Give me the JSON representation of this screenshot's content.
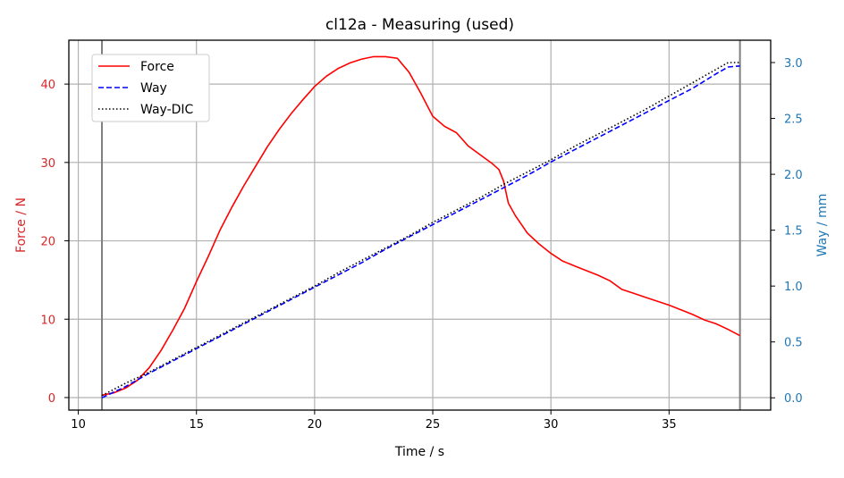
{
  "chart_data": {
    "type": "line",
    "title": "cl12a - Measuring (used)",
    "xlabel": "Time / s",
    "ylabel_left": "Force / N",
    "ylabel_right": "Way / mm",
    "xlim": [
      9.6,
      39.3
    ],
    "ylim_left": [
      -1.6,
      45.6
    ],
    "ylim_right": [
      -0.11,
      3.2
    ],
    "x_ticks": [
      10,
      15,
      20,
      25,
      30,
      35
    ],
    "y_left_ticks": [
      0,
      10,
      20,
      30,
      40
    ],
    "y_right_ticks": [
      0.0,
      0.5,
      1.0,
      1.5,
      2.0,
      2.5,
      3.0
    ],
    "y_right_tick_labels": [
      "0.0",
      "0.5",
      "1.0",
      "1.5",
      "2.0",
      "2.5",
      "3.0"
    ],
    "grid": true,
    "legend_position": "top-left",
    "vertical_markers": [
      11,
      38
    ],
    "colors": {
      "force": "#ff0000",
      "way": "#0000ff",
      "way_dic": "#000000",
      "left_axis": "#d62728",
      "right_axis": "#1f77b4",
      "grid": "#b0b0b0",
      "marker": "#808080"
    },
    "series": [
      {
        "name": "Force",
        "axis": "left",
        "style": "solid",
        "color": "#ff0000",
        "x": [
          11,
          11.5,
          12,
          12.5,
          13,
          13.5,
          14,
          14.5,
          15,
          15.5,
          16,
          16.5,
          17,
          17.5,
          18,
          18.5,
          19,
          19.5,
          20,
          20.5,
          21,
          21.5,
          22,
          22.5,
          23,
          23.5,
          24,
          24.5,
          25,
          25.5,
          26,
          26.5,
          27,
          27.5,
          27.8,
          28,
          28.2,
          28.5,
          29,
          29.5,
          30,
          30.5,
          31,
          31.5,
          32,
          32.5,
          33,
          33.5,
          34,
          34.5,
          35,
          35.5,
          36,
          36.5,
          37,
          37.5,
          38
        ],
        "y": [
          0.3,
          0.6,
          1.2,
          2.2,
          3.8,
          6.0,
          8.6,
          11.4,
          14.8,
          18.0,
          21.4,
          24.3,
          27.0,
          29.5,
          32.0,
          34.2,
          36.2,
          38.0,
          39.7,
          41.0,
          42.0,
          42.7,
          43.2,
          43.5,
          43.5,
          43.3,
          41.5,
          38.8,
          35.9,
          34.6,
          33.8,
          32.1,
          31.0,
          29.9,
          29.1,
          27.6,
          24.8,
          23.2,
          21.0,
          19.6,
          18.4,
          17.4,
          16.8,
          16.2,
          15.6,
          14.9,
          13.8,
          13.3,
          12.8,
          12.3,
          11.8,
          11.2,
          10.6,
          9.9,
          9.4,
          8.7,
          7.9
        ]
      },
      {
        "name": "Way",
        "axis": "right",
        "style": "dashed",
        "color": "#0000ff",
        "x": [
          11,
          12,
          13,
          14,
          15,
          16,
          17,
          18,
          19,
          20,
          21,
          22,
          23,
          24,
          25,
          26,
          27,
          28,
          29,
          30,
          31,
          32,
          33,
          34,
          35,
          36,
          37,
          37.5,
          38
        ],
        "y": [
          0.0,
          0.1,
          0.22,
          0.33,
          0.44,
          0.55,
          0.66,
          0.77,
          0.88,
          0.99,
          1.1,
          1.21,
          1.33,
          1.44,
          1.55,
          1.66,
          1.77,
          1.88,
          1.99,
          2.11,
          2.22,
          2.33,
          2.44,
          2.55,
          2.66,
          2.77,
          2.9,
          2.96,
          2.97
        ]
      },
      {
        "name": "Way-DIC",
        "axis": "right",
        "style": "dotted",
        "color": "#000000",
        "x": [
          11,
          12,
          13,
          14,
          15,
          16,
          17,
          18,
          19,
          20,
          21,
          22,
          23,
          24,
          25,
          26,
          27,
          28,
          29,
          30,
          31,
          32,
          33,
          34,
          35,
          36,
          37,
          37.5,
          38
        ],
        "y": [
          0.02,
          0.13,
          0.23,
          0.34,
          0.45,
          0.56,
          0.67,
          0.78,
          0.89,
          1.0,
          1.12,
          1.23,
          1.34,
          1.45,
          1.57,
          1.68,
          1.79,
          1.91,
          2.02,
          2.13,
          2.25,
          2.36,
          2.47,
          2.58,
          2.7,
          2.82,
          2.94,
          3.0,
          3.0
        ]
      }
    ]
  }
}
